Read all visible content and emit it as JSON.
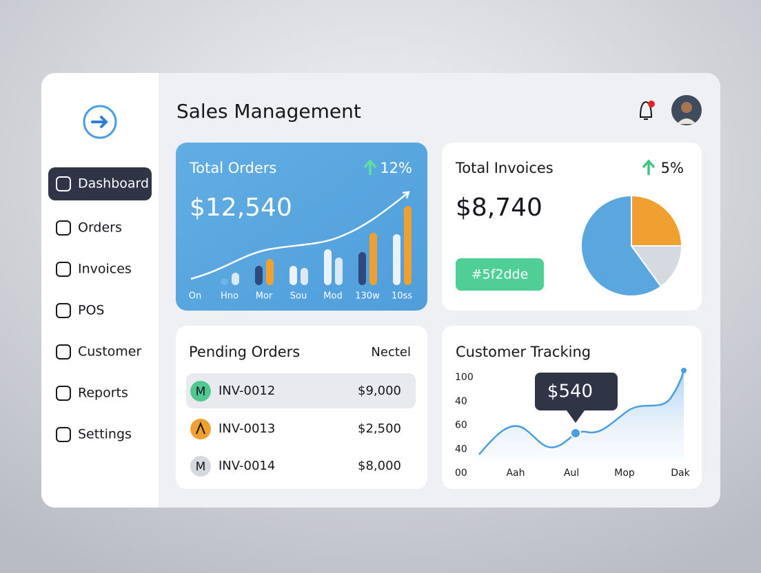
{
  "sidebar": {
    "nav": [
      "Dashboard",
      "Orders",
      "Invoices",
      "POS",
      "Customer",
      "Reports",
      "Settings"
    ]
  },
  "header": {
    "title": "Sales Management"
  },
  "total_orders": {
    "title": "Total Orders",
    "change": "12%",
    "value": "$12,540",
    "chart": {
      "type": "bar",
      "categories": [
        "On",
        "Hno",
        "Mor",
        "Sou",
        "Mod",
        "130w",
        "10ss"
      ],
      "ylim": [
        0,
        120
      ],
      "series": [
        {
          "colors": [
            null,
            "#6fb3e8",
            "#2d4a7c",
            "#eaf3fb",
            "#eaf3fb",
            "#2d4a7c",
            "#eaf3fb"
          ],
          "values": [
            null,
            10,
            28,
            28,
            52,
            48,
            74
          ]
        },
        {
          "colors": [
            null,
            "#dbe9f7",
            "#f0a030",
            "#dbe9f7",
            "#dbe9f7",
            "#f0a030",
            "#f0a030"
          ],
          "values": [
            null,
            18,
            38,
            25,
            40,
            76,
            115
          ]
        }
      ]
    }
  },
  "total_invoices": {
    "title": "Total Invoices",
    "change": "5%",
    "value": "$8,740",
    "badge": "#5f2dde",
    "chart": {
      "type": "pie",
      "values": [
        25,
        15,
        60
      ],
      "colors": [
        "#f0a030",
        "#d5d9e0",
        "#5aa6df"
      ]
    }
  },
  "pending_orders": {
    "title": "Pending Orders",
    "action": "Nectel",
    "rows": [
      {
        "avatar": "M",
        "id": "INV-0012",
        "amount": "$9,000"
      },
      {
        "id": "INV-0013",
        "amount": "$2,500"
      },
      {
        "avatar": "M",
        "id": "INV-0014",
        "amount": "$8,000"
      }
    ]
  },
  "customer_tracking": {
    "title": "Customer Tracking",
    "y_labels": [
      "100",
      "40",
      "60",
      "40",
      "00"
    ],
    "x_labels": [
      "Aah",
      "Aul",
      "Mop",
      "Dak"
    ],
    "tooltip": "$540"
  }
}
